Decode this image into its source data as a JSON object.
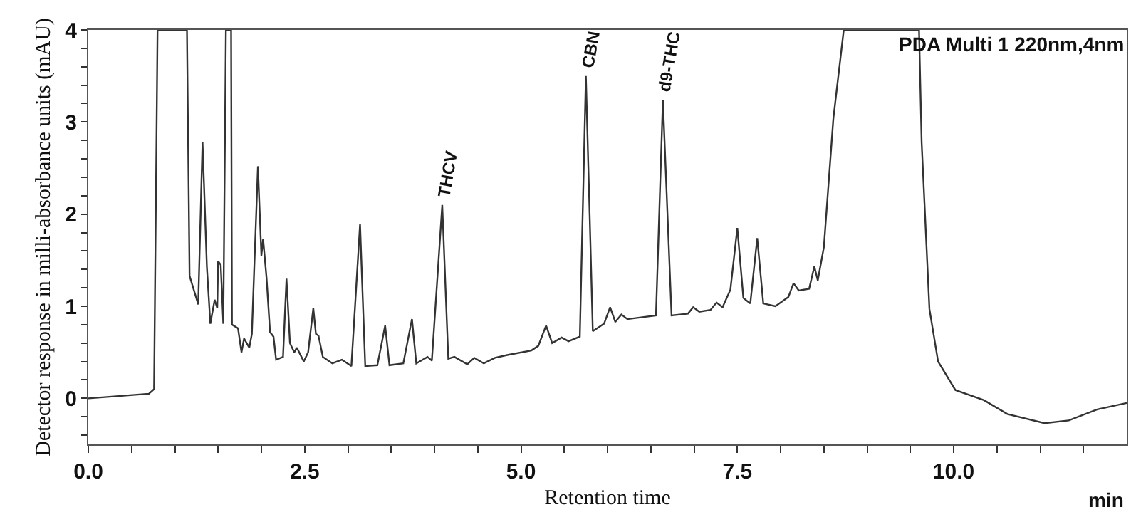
{
  "chart_data": {
    "type": "line",
    "xlabel": "Retention time",
    "ylabel": "Detector response in milli-absorbance units (mAU)",
    "x": [
      0,
      0.7,
      0.76,
      0.8,
      1.14,
      1.17,
      1.27,
      1.32,
      1.37,
      1.41,
      1.46,
      1.49,
      1.5,
      1.53,
      1.56,
      1.59,
      1.65,
      1.66,
      1.73,
      1.77,
      1.8,
      1.86,
      1.89,
      1.96,
      2.0,
      2.02,
      2.06,
      2.1,
      2.14,
      2.17,
      2.25,
      2.29,
      2.33,
      2.38,
      2.41,
      2.49,
      2.54,
      2.6,
      2.63,
      2.66,
      2.71,
      2.82,
      2.93,
      3.04,
      3.14,
      3.2,
      3.34,
      3.43,
      3.48,
      3.64,
      3.74,
      3.79,
      3.92,
      3.97,
      4.09,
      4.16,
      4.23,
      4.38,
      4.46,
      4.57,
      4.7,
      4.84,
      5.12,
      5.2,
      5.29,
      5.36,
      5.47,
      5.55,
      5.68,
      5.75,
      5.83,
      5.96,
      6.03,
      6.09,
      6.16,
      6.23,
      6.56,
      6.64,
      6.74,
      6.93,
      6.99,
      7.06,
      7.19,
      7.26,
      7.33,
      7.42,
      7.5,
      7.57,
      7.65,
      7.73,
      7.8,
      7.94,
      8.09,
      8.15,
      8.21,
      8.33,
      8.39,
      8.43,
      8.5,
      8.61,
      8.73,
      9.6,
      9.63,
      9.72,
      9.82,
      10.02,
      10.35,
      10.62,
      11.05,
      11.33,
      11.66,
      12.0
    ],
    "values": [
      0,
      0.05,
      0.1,
      4,
      4,
      1.33,
      1.02,
      2.78,
      1.43,
      0.81,
      1.07,
      0.98,
      1.49,
      1.45,
      0.81,
      4,
      4,
      0.8,
      0.76,
      0.5,
      0.65,
      0.55,
      0.7,
      2.52,
      1.55,
      1.73,
      1.3,
      0.72,
      0.67,
      0.42,
      0.45,
      1.3,
      0.6,
      0.5,
      0.55,
      0.4,
      0.5,
      0.98,
      0.7,
      0.68,
      0.45,
      0.38,
      0.42,
      0.35,
      1.89,
      0.35,
      0.36,
      0.79,
      0.36,
      0.38,
      0.86,
      0.38,
      0.45,
      0.41,
      2.1,
      0.43,
      0.45,
      0.37,
      0.44,
      0.38,
      0.44,
      0.47,
      0.52,
      0.57,
      0.79,
      0.6,
      0.66,
      0.62,
      0.67,
      3.5,
      0.73,
      0.81,
      0.99,
      0.83,
      0.91,
      0.86,
      0.9,
      3.24,
      0.9,
      0.92,
      0.99,
      0.94,
      0.96,
      1.04,
      0.99,
      1.18,
      1.85,
      1.09,
      1.03,
      1.74,
      1.03,
      1.0,
      1.1,
      1.25,
      1.17,
      1.19,
      1.43,
      1.28,
      1.64,
      3.04,
      4,
      4,
      2.78,
      0.97,
      0.4,
      0.09,
      -0.02,
      -0.17,
      -0.27,
      -0.24,
      -0.12,
      -0.05
    ],
    "color": "#333333",
    "line_style": "solid",
    "marker": "none",
    "grid": false,
    "xlim": [
      0,
      12
    ],
    "ylim": [
      -0.5,
      4
    ],
    "xticks": [
      {
        "value": 0,
        "label": "0.0"
      },
      {
        "value": 0.5,
        "label": null
      },
      {
        "value": 1,
        "label": null
      },
      {
        "value": 1.5,
        "label": null
      },
      {
        "value": 2,
        "label": null
      },
      2.5,
      {
        "value": 3,
        "label": null
      },
      {
        "value": 3.5,
        "label": null
      },
      {
        "value": 4,
        "label": null
      },
      {
        "value": 4.5,
        "label": null
      },
      {
        "value": 5,
        "label": "5.0"
      },
      {
        "value": 5.5,
        "label": null
      },
      {
        "value": 6,
        "label": null
      },
      {
        "value": 6.5,
        "label": null
      },
      {
        "value": 7,
        "label": null
      },
      7.5,
      {
        "value": 8,
        "label": null
      },
      {
        "value": 8.5,
        "label": null
      },
      {
        "value": 9,
        "label": null
      },
      {
        "value": 9.5,
        "label": null
      },
      {
        "value": 10,
        "label": "10.0"
      },
      {
        "value": 10.5,
        "label": null
      },
      {
        "value": 11,
        "label": null
      },
      {
        "value": 11.5,
        "label": null
      }
    ],
    "yticks": [
      {
        "value": -0.4,
        "label": null
      },
      {
        "value": -0.2,
        "label": null
      },
      0,
      {
        "value": 0.2,
        "label": null
      },
      {
        "value": 0.4,
        "label": null
      },
      {
        "value": 0.6,
        "label": null
      },
      {
        "value": 0.8,
        "label": null
      },
      1,
      {
        "value": 1.2,
        "label": null
      },
      {
        "value": 1.4,
        "label": null
      },
      {
        "value": 1.6,
        "label": null
      },
      {
        "value": 1.8,
        "label": null
      },
      2,
      {
        "value": 2.2,
        "label": null
      },
      {
        "value": 2.4,
        "label": null
      },
      {
        "value": 2.6,
        "label": null
      },
      {
        "value": 2.8,
        "label": null
      },
      3,
      {
        "value": 3.2,
        "label": null
      },
      {
        "value": 3.4,
        "label": null
      },
      {
        "value": 3.6,
        "label": null
      },
      {
        "value": 3.8,
        "label": null
      },
      4
    ],
    "annotations": [
      {
        "text": "THCV",
        "x": 4.09,
        "y": 2.1
      },
      {
        "text": "CBN",
        "x": 5.75,
        "y": 3.5
      },
      {
        "text": "d9-THC",
        "x": 6.64,
        "y": 3.24
      },
      "PDA Multi 1 220nm,4nm",
      "min"
    ]
  }
}
